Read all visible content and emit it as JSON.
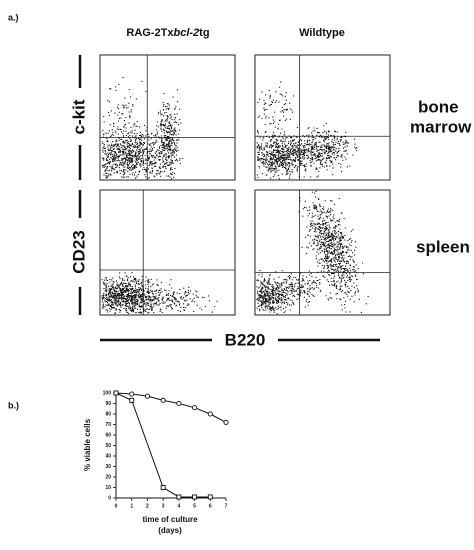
{
  "figure": {
    "panel_a_label": "a.)",
    "panel_b_label": "b.)",
    "column_headers": [
      [
        "RAG-2Tx",
        "bcl-2",
        "tg"
      ],
      [
        "Wildtype"
      ]
    ],
    "row_axis_labels": [
      "c-kit",
      "CD23"
    ],
    "row_tissue_labels": [
      [
        "bone",
        "marrow"
      ],
      [
        "spleen"
      ]
    ],
    "x_axis_label": "B220"
  },
  "chart_data": {
    "type": "line",
    "y_label": "% viable cells",
    "x_label": [
      "time of culture",
      "(days)"
    ],
    "xlim": [
      0,
      7
    ],
    "xticks": [
      0,
      1,
      2,
      3,
      4,
      5,
      6,
      7
    ],
    "ylim": [
      0,
      100
    ],
    "yticks": [
      0,
      10,
      20,
      30,
      40,
      50,
      60,
      70,
      80,
      90,
      100
    ],
    "series": [
      {
        "color": "#111111",
        "marker": "circle",
        "x": [
          0,
          1,
          2,
          3,
          4,
          5,
          6,
          7
        ],
        "values": [
          100,
          99,
          97,
          93,
          90,
          86,
          80,
          72
        ]
      },
      {
        "color": "#111111",
        "marker": "square",
        "x": [
          0,
          1,
          3,
          4,
          5,
          6
        ],
        "values": [
          100,
          93,
          10,
          1,
          1,
          1
        ]
      }
    ]
  }
}
